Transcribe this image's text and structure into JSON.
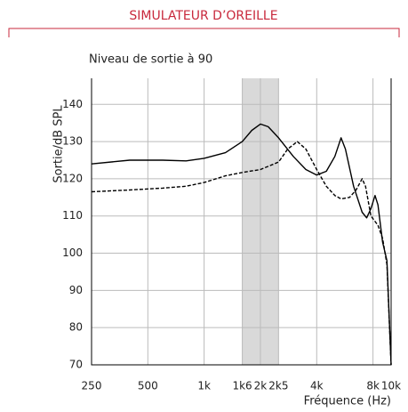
{
  "chart_data": {
    "type": "line",
    "title": "SIMULATEUR D’OREILLE",
    "title_color": "#c8283c",
    "subtitle": "Niveau de sortie à 90",
    "y_label": "Sortie/dB SPL",
    "x_label": "Fréquence (Hz)",
    "x_scale": "log",
    "grid": true,
    "xlim": [
      250,
      10000
    ],
    "ylim": [
      70,
      147
    ],
    "xticks": [
      250,
      500,
      {
        "value": 1000,
        "label": "1k"
      },
      {
        "value": 1600,
        "label": "1k6"
      },
      {
        "value": 2000,
        "label": "2k"
      },
      {
        "value": 2500,
        "label": "2k5"
      },
      {
        "value": 4000,
        "label": "4k"
      },
      {
        "value": 8000,
        "label": "8k"
      },
      {
        "value": 10000,
        "label": "10k"
      }
    ],
    "yticks": [
      70,
      80,
      90,
      100,
      110,
      120,
      130,
      140
    ],
    "band": [
      1600,
      2500
    ],
    "band_color": "#d9d9d9",
    "series": [
      {
        "color": "#000000",
        "dashed": false,
        "x": [
          250,
          400,
          600,
          800,
          1000,
          1300,
          1600,
          1800,
          2000,
          2200,
          2500,
          3000,
          3500,
          4000,
          4500,
          5000,
          5400,
          5700,
          6300,
          7000,
          7400,
          7800,
          8200,
          8500,
          9000,
          9500,
          10000
        ],
        "values": [
          124,
          125,
          125,
          124.8,
          125.5,
          127,
          130,
          133,
          134.7,
          134,
          131,
          126,
          122.5,
          121,
          122,
          126,
          131,
          128,
          118,
          111,
          109.5,
          112,
          115.5,
          113,
          103,
          98,
          70
        ]
      },
      {
        "color": "#000000",
        "dashed": true,
        "x": [
          250,
          400,
          600,
          800,
          1000,
          1300,
          1600,
          2000,
          2500,
          2800,
          3150,
          3500,
          4000,
          4500,
          5000,
          5400,
          6000,
          6500,
          7000,
          7300,
          7800,
          8500,
          9000,
          9500,
          10000
        ],
        "values": [
          116.5,
          117,
          117.5,
          118,
          119,
          120.8,
          121.7,
          122.5,
          124.5,
          128,
          130,
          128,
          122.5,
          118,
          115.5,
          114.6,
          115,
          117,
          120,
          118,
          110,
          107.5,
          104,
          97,
          70
        ]
      }
    ]
  }
}
